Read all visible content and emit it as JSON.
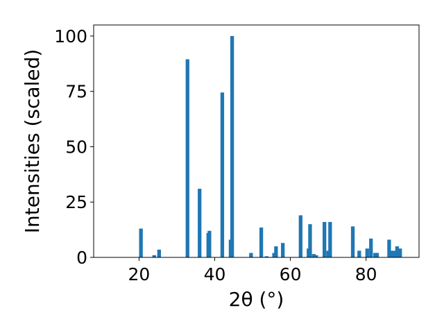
{
  "chart_data": {
    "type": "bar",
    "title": "",
    "xlabel": "2θ (°)",
    "ylabel": "Intensities (scaled)",
    "xlim": [
      8,
      94
    ],
    "ylim": [
      0,
      105
    ],
    "xticks": [
      20,
      40,
      60,
      80
    ],
    "yticks": [
      0,
      25,
      50,
      75,
      100
    ],
    "grid": false,
    "bar_color": "#1f77b4",
    "x": [
      20.5,
      24.0,
      25.3,
      32.8,
      36.0,
      38.3,
      38.6,
      42.0,
      44.2,
      44.6,
      49.6,
      52.3,
      53.7,
      55.7,
      56.2,
      58.0,
      62.7,
      64.8,
      65.2,
      66.2,
      66.8,
      69.0,
      70.0,
      70.5,
      76.5,
      78.2,
      80.3,
      81.3,
      82.4,
      82.9,
      86.1,
      86.6,
      87.3,
      88.2,
      89.0
    ],
    "values": [
      13,
      1,
      3.5,
      89.5,
      31,
      11,
      12,
      74.5,
      8,
      100,
      2,
      13.5,
      0.5,
      2,
      5,
      6.5,
      19,
      4,
      15,
      1.5,
      1,
      16,
      3,
      16,
      14,
      3,
      4,
      8.5,
      2,
      2,
      8,
      3,
      3,
      5,
      4
    ]
  }
}
